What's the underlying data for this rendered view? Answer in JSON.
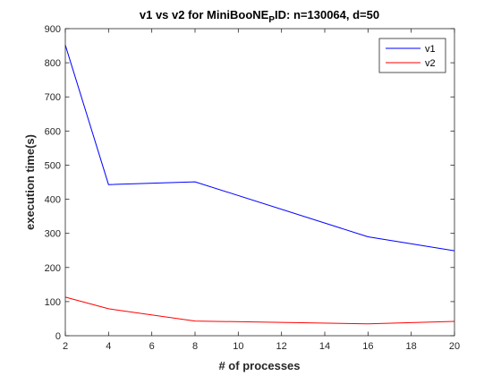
{
  "chart_data": {
    "type": "line",
    "title_prefix": "v1 vs v2 for MiniBooNE",
    "title_subscript": "P",
    "title_suffix": "ID: n=130064, d=50",
    "xlabel": "# of processes",
    "ylabel": "execution time(s)",
    "xlim": [
      2,
      20
    ],
    "ylim": [
      0,
      900
    ],
    "xticks": [
      2,
      4,
      6,
      8,
      10,
      12,
      14,
      16,
      18,
      20
    ],
    "yticks": [
      0,
      100,
      200,
      300,
      400,
      500,
      600,
      700,
      800,
      900
    ],
    "grid": false,
    "legend_position": "top-right",
    "x": [
      2,
      4,
      8,
      16,
      20
    ],
    "series": [
      {
        "name": "v1",
        "color": "#0000ff",
        "values": [
          852,
          443,
          451,
          290,
          249
        ]
      },
      {
        "name": "v2",
        "color": "#ff0000",
        "values": [
          113,
          79,
          43,
          35,
          42
        ]
      }
    ]
  }
}
